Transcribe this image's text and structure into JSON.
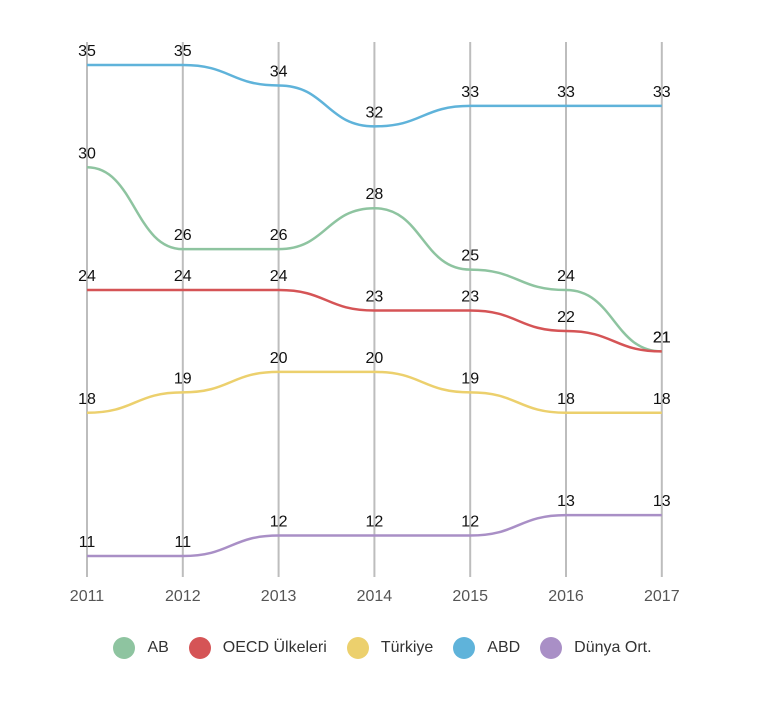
{
  "chart_data": {
    "type": "line",
    "x": [
      "2011",
      "2012",
      "2013",
      "2014",
      "2015",
      "2016",
      "2017"
    ],
    "ylim": [
      9,
      37
    ],
    "grid": "vertical",
    "legend_position": "bottom",
    "series": [
      {
        "name": "AB",
        "color": "#8ec4a0",
        "values": [
          30,
          26,
          26,
          28,
          25,
          24,
          21
        ]
      },
      {
        "name": "OECD Ülkeleri",
        "color": "#d55456",
        "values": [
          24,
          24,
          24,
          23,
          23,
          22,
          21
        ]
      },
      {
        "name": "Türkiye",
        "color": "#ecd06d",
        "values": [
          18,
          19,
          20,
          20,
          19,
          18,
          18
        ]
      },
      {
        "name": "ABD",
        "color": "#5fb3da",
        "values": [
          35,
          35,
          34,
          32,
          33,
          33,
          33
        ]
      },
      {
        "name": "Dünya Ort.",
        "color": "#a98fc6",
        "values": [
          11,
          11,
          12,
          12,
          12,
          13,
          13
        ]
      }
    ]
  }
}
